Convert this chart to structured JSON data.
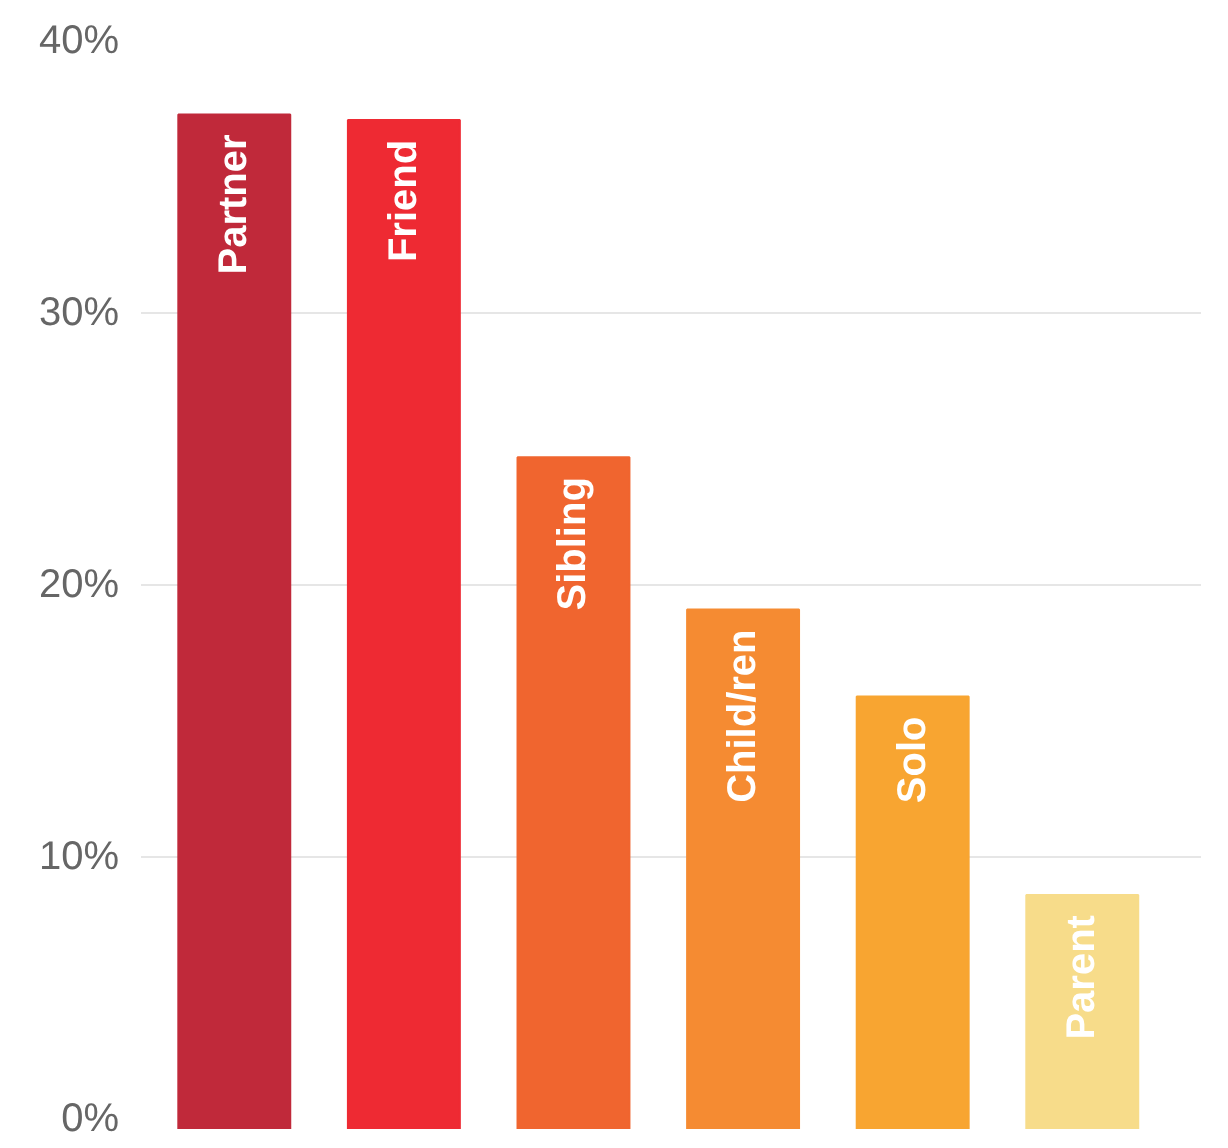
{
  "chart_data": {
    "type": "bar",
    "categories": [
      "Partner",
      "Friend",
      "Sibling",
      "Child/ren",
      "Solo",
      "Parent"
    ],
    "values": [
      37.3,
      37.1,
      24.7,
      19.1,
      15.9,
      8.6
    ],
    "colors": [
      "#c0293a",
      "#ee2a33",
      "#f0652f",
      "#f58b32",
      "#f8a531",
      "#f7dc8a"
    ],
    "ylim": [
      0,
      40
    ],
    "yticks": [
      {
        "value": 0,
        "label": "0%"
      },
      {
        "value": 10,
        "label": "10%"
      },
      {
        "value": 20,
        "label": "20%"
      },
      {
        "value": 30,
        "label": "30%"
      },
      {
        "value": 40,
        "label": "40%"
      }
    ],
    "grid": "y",
    "tick_labels": "y"
  }
}
